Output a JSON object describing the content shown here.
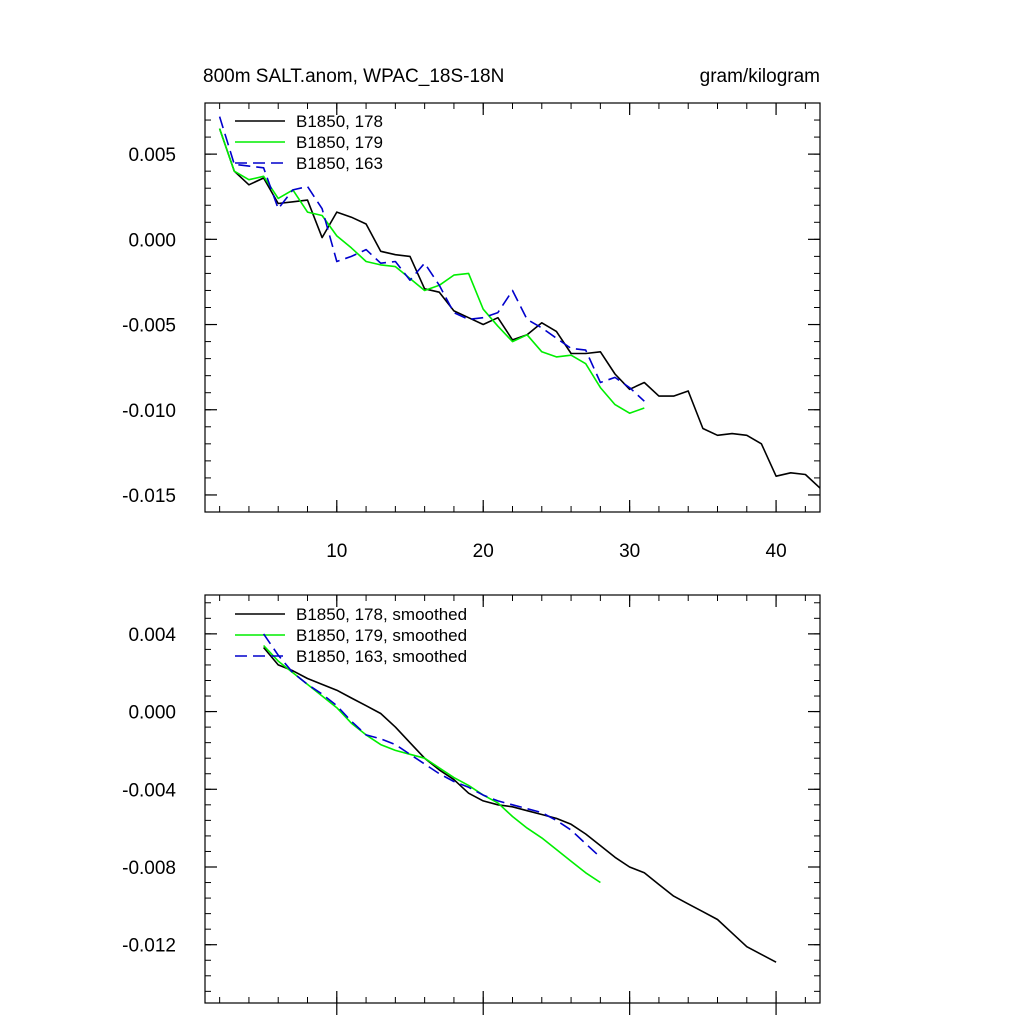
{
  "header": {
    "title": "800m SALT.anom, WPAC_18S-18N",
    "units": "gram/kilogram"
  },
  "colors": {
    "run_178": "#000000",
    "run_179": "#00ee00",
    "run_163": "#0000cc"
  },
  "chart_data": [
    {
      "type": "line",
      "title": "800m SALT.anom, WPAC_18S-18N",
      "units": "gram/kilogram",
      "xlim": [
        1,
        43
      ],
      "ylim": [
        -0.016,
        0.008
      ],
      "xticks": [
        10,
        20,
        30,
        40
      ],
      "xtick_labels": [
        "10",
        "20",
        "30",
        "40"
      ],
      "yticks": [
        -0.015,
        -0.01,
        -0.005,
        0.0,
        0.005
      ],
      "ytick_labels": [
        "-0.015",
        "-0.010",
        "-0.005",
        "0.000",
        "0.005"
      ],
      "legend_position": "top-left",
      "series": [
        {
          "name": "B1850, 178",
          "color": "#000000",
          "dash": "solid",
          "x": [
            2,
            3,
            4,
            5,
            6,
            7,
            8,
            9,
            10,
            11,
            12,
            13,
            14,
            15,
            16,
            17,
            18,
            19,
            20,
            21,
            22,
            23,
            24,
            25,
            26,
            27,
            28,
            29,
            30,
            31,
            32,
            33,
            34,
            35,
            36,
            37,
            38,
            39,
            40,
            41,
            42,
            43
          ],
          "values": [
            0.0065,
            0.004,
            0.0032,
            0.0036,
            0.0021,
            0.0022,
            0.0023,
            0.0001,
            0.0016,
            0.0013,
            0.0009,
            -0.0007,
            -0.0009,
            -0.001,
            -0.0029,
            -0.0031,
            -0.0042,
            -0.0046,
            -0.005,
            -0.0046,
            -0.0059,
            -0.0056,
            -0.0049,
            -0.0054,
            -0.0067,
            -0.0067,
            -0.0066,
            -0.0079,
            -0.0088,
            -0.0084,
            -0.0092,
            -0.0092,
            -0.0089,
            -0.0111,
            -0.0115,
            -0.0114,
            -0.0115,
            -0.012,
            -0.0139,
            -0.0137,
            -0.0138,
            -0.0146
          ]
        },
        {
          "name": "B1850, 179",
          "color": "#00ee00",
          "dash": "solid",
          "x": [
            2,
            3,
            4,
            5,
            6,
            7,
            8,
            9,
            10,
            11,
            12,
            13,
            14,
            15,
            16,
            17,
            18,
            19,
            20,
            21,
            22,
            23,
            24,
            25,
            26,
            27,
            28,
            29,
            30,
            31
          ],
          "values": [
            0.0065,
            0.004,
            0.0035,
            0.0037,
            0.0024,
            0.0029,
            0.0016,
            0.0014,
            0.0002,
            -0.0005,
            -0.0013,
            -0.0015,
            -0.0016,
            -0.0023,
            -0.003,
            -0.0027,
            -0.0021,
            -0.002,
            -0.0041,
            -0.0051,
            -0.006,
            -0.0056,
            -0.0066,
            -0.0069,
            -0.0068,
            -0.0073,
            -0.0087,
            -0.0097,
            -0.0102,
            -0.0099
          ]
        },
        {
          "name": "B1850, 163",
          "color": "#0000cc",
          "dash": "dashed",
          "x": [
            2,
            3,
            4,
            5,
            6,
            7,
            8,
            9,
            10,
            11,
            12,
            13,
            14,
            15,
            16,
            17,
            18,
            19,
            20,
            21,
            22,
            23,
            24,
            25,
            26,
            27,
            28,
            29,
            30,
            31
          ],
          "values": [
            0.0072,
            0.0044,
            0.0043,
            0.0042,
            0.0018,
            0.0029,
            0.0031,
            0.0018,
            -0.0013,
            -0.001,
            -0.0006,
            -0.0014,
            -0.0013,
            -0.0024,
            -0.0014,
            -0.0027,
            -0.0043,
            -0.0047,
            -0.0046,
            -0.0043,
            -0.003,
            -0.0047,
            -0.0052,
            -0.0058,
            -0.0064,
            -0.0065,
            -0.0084,
            -0.0081,
            -0.0087,
            -0.0095
          ]
        }
      ]
    },
    {
      "type": "line",
      "xlim": [
        1,
        43
      ],
      "ylim": [
        -0.015,
        0.006
      ],
      "xticks": [
        10,
        20,
        30,
        40
      ],
      "xtick_labels": [],
      "yticks": [
        -0.012,
        -0.008,
        -0.004,
        0.0,
        0.004
      ],
      "ytick_labels": [
        "-0.012",
        "-0.008",
        "-0.004",
        "0.000",
        "0.004"
      ],
      "legend_position": "top-left",
      "series": [
        {
          "name": "B1850, 178, smoothed",
          "color": "#000000",
          "dash": "solid",
          "x": [
            5,
            6,
            7,
            8,
            9,
            10,
            11,
            12,
            13,
            14,
            15,
            16,
            17,
            18,
            19,
            20,
            21,
            22,
            23,
            24,
            25,
            26,
            27,
            28,
            29,
            30,
            31,
            32,
            33,
            34,
            35,
            36,
            37,
            38,
            39,
            40
          ],
          "values": [
            0.0033,
            0.0024,
            0.0021,
            0.0017,
            0.0014,
            0.0011,
            0.0007,
            0.0003,
            -0.0001,
            -0.0008,
            -0.0016,
            -0.0024,
            -0.003,
            -0.0035,
            -0.0042,
            -0.0046,
            -0.0048,
            -0.0049,
            -0.0051,
            -0.0053,
            -0.0055,
            -0.0058,
            -0.0063,
            -0.0069,
            -0.0075,
            -0.008,
            -0.0083,
            -0.0089,
            -0.0095,
            -0.0099,
            -0.0103,
            -0.0107,
            -0.0114,
            -0.0121,
            -0.0125,
            -0.0129
          ]
        },
        {
          "name": "B1850, 179, smoothed",
          "color": "#00ee00",
          "dash": "solid",
          "x": [
            5,
            6,
            7,
            8,
            9,
            10,
            11,
            12,
            13,
            14,
            15,
            16,
            17,
            18,
            19,
            20,
            21,
            22,
            23,
            24,
            25,
            26,
            27,
            28
          ],
          "values": [
            0.0034,
            0.0026,
            0.002,
            0.0014,
            0.0008,
            0.0002,
            -0.0006,
            -0.0012,
            -0.0017,
            -0.002,
            -0.0022,
            -0.0024,
            -0.0029,
            -0.0034,
            -0.0038,
            -0.0043,
            -0.0047,
            -0.0054,
            -0.006,
            -0.0065,
            -0.0071,
            -0.0077,
            -0.0083,
            -0.0088
          ]
        },
        {
          "name": "B1850, 163, smoothed",
          "color": "#0000cc",
          "dash": "dashed",
          "x": [
            5,
            6,
            7,
            8,
            9,
            10,
            11,
            12,
            13,
            14,
            15,
            16,
            17,
            18,
            19,
            20,
            21,
            22,
            23,
            24,
            25,
            26,
            27,
            28
          ],
          "values": [
            0.004,
            0.0029,
            0.002,
            0.0014,
            0.0009,
            0.0003,
            -0.0005,
            -0.0012,
            -0.0014,
            -0.0017,
            -0.0022,
            -0.0027,
            -0.0032,
            -0.0036,
            -0.0039,
            -0.0043,
            -0.0046,
            -0.0048,
            -0.005,
            -0.0052,
            -0.0056,
            -0.0061,
            -0.0068,
            -0.0075
          ]
        }
      ]
    }
  ]
}
